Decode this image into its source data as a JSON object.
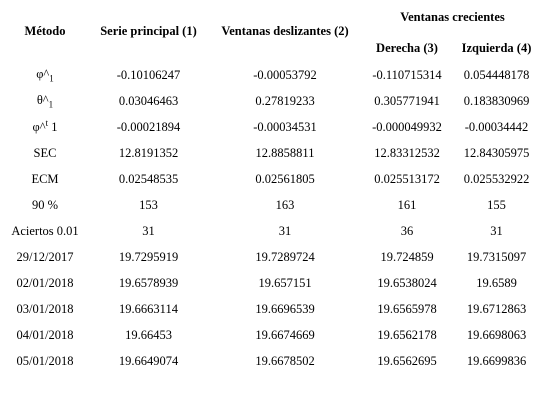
{
  "table": {
    "header": {
      "metodo": "Método",
      "serie": "Serie principal (1)",
      "deslizantes": "Ventanas deslizantes (2)",
      "crecientes": "Ventanas crecientes",
      "derecha": "Derecha (3)",
      "izquierda": "Izquierda (4)"
    },
    "rows": [
      {
        "label": {
          "main": "φ^",
          "sub": "1"
        },
        "cells": [
          "-0.10106247",
          "-0.00053792",
          "-0.110715314",
          "0.054448178"
        ]
      },
      {
        "label": {
          "main": "θ^",
          "sub": "1"
        },
        "cells": [
          "0.03046463",
          "0.27819233",
          "0.305771941",
          "0.183830969"
        ]
      },
      {
        "label": {
          "main": "φ^",
          "sup": "t",
          "after": " 1"
        },
        "cells": [
          "-0.00021894",
          "-0.00034531",
          "-0.000049932",
          "-0.00034442"
        ]
      },
      {
        "label": {
          "main": "SEC"
        },
        "cells": [
          "12.8191352",
          "12.8858811",
          "12.83312532",
          "12.84305975"
        ]
      },
      {
        "label": {
          "main": "ECM"
        },
        "cells": [
          "0.02548535",
          "0.02561805",
          "0.025513172",
          "0.025532922"
        ]
      },
      {
        "label": {
          "main": "90 %"
        },
        "cells": [
          "153",
          "163",
          "161",
          "155"
        ]
      },
      {
        "label": {
          "main": "Aciertos 0.01"
        },
        "cells": [
          "31",
          "31",
          "36",
          "31"
        ]
      },
      {
        "label": {
          "main": "29/12/2017"
        },
        "cells": [
          "19.7295919",
          "19.7289724",
          "19.724859",
          "19.7315097"
        ]
      },
      {
        "label": {
          "main": "02/01/2018"
        },
        "cells": [
          "19.6578939",
          "19.657151",
          "19.6538024",
          "19.6589"
        ]
      },
      {
        "label": {
          "main": "03/01/2018"
        },
        "cells": [
          "19.6663114",
          "19.6696539",
          "19.6565978",
          "19.6712863"
        ]
      },
      {
        "label": {
          "main": "04/01/2018"
        },
        "cells": [
          "19.66453",
          "19.6674669",
          "19.6562178",
          "19.6698063"
        ]
      },
      {
        "label": {
          "main": "05/01/2018"
        },
        "cells": [
          "19.6649074",
          "19.6678502",
          "19.6562695",
          "19.6699836"
        ]
      }
    ]
  }
}
